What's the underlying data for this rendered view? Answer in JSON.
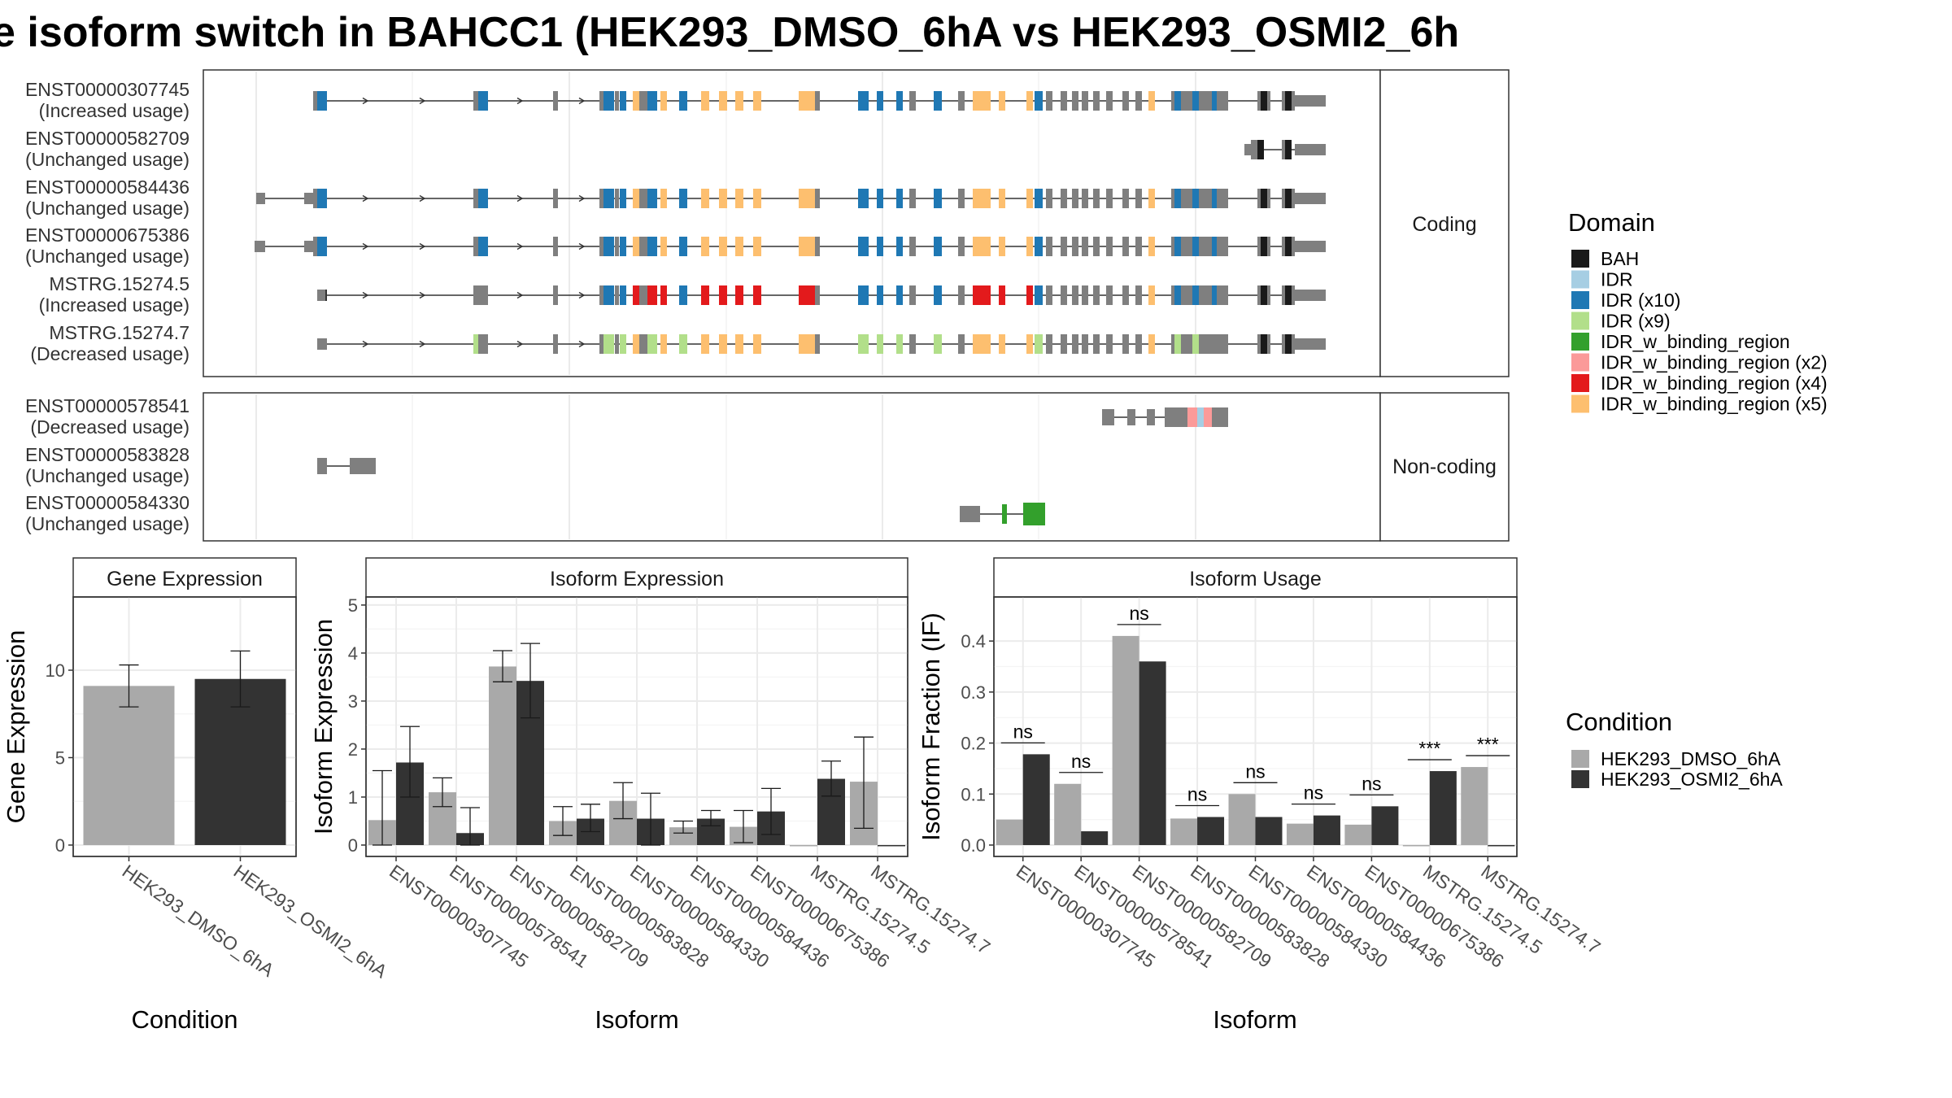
{
  "title": "e isoform switch in BAHCC1 (HEK293_DMSO_6hA vs HEK293_OSMI2_6h",
  "colors": {
    "BAH": "#1a1a1a",
    "IDR": "#a6cee3",
    "IDR (x10)": "#1f78b4",
    "IDR (x9)": "#b2df8a",
    "IDR_w_binding_region": "#33a02c",
    "IDR_w_binding_region (x2)": "#fb9a99",
    "IDR_w_binding_region (x4)": "#e31a1c",
    "IDR_w_binding_region (x5)": "#fdbf6f",
    "exon": "#7f7f7f",
    "dmso": "#a9a9a9",
    "osmi": "#333333"
  },
  "structure": {
    "coding_strip": "Coding",
    "noncoding_strip": "Non-coding",
    "coding": [
      {
        "id": "ENST00000307745",
        "usage": "(Increased usage)"
      },
      {
        "id": "ENST00000582709",
        "usage": "(Unchanged usage)"
      },
      {
        "id": "ENST00000584436",
        "usage": "(Unchanged usage)"
      },
      {
        "id": "ENST00000675386",
        "usage": "(Unchanged usage)"
      },
      {
        "id": "MSTRG.15274.5",
        "usage": "(Increased usage)"
      },
      {
        "id": "MSTRG.15274.7",
        "usage": "(Decreased usage)"
      }
    ],
    "noncoding": [
      {
        "id": "ENST00000578541",
        "usage": "(Decreased usage)"
      },
      {
        "id": "ENST00000583828",
        "usage": "(Unchanged usage)"
      },
      {
        "id": "ENST00000584330",
        "usage": "(Unchanged usage)"
      }
    ]
  },
  "legend_domain": {
    "title": "Domain",
    "items": [
      "BAH",
      "IDR",
      "IDR (x10)",
      "IDR (x9)",
      "IDR_w_binding_region",
      "IDR_w_binding_region (x2)",
      "IDR_w_binding_region (x4)",
      "IDR_w_binding_region (x5)"
    ]
  },
  "legend_condition": {
    "title": "Condition",
    "items": [
      "HEK293_DMSO_6hA",
      "HEK293_OSMI2_6hA"
    ]
  },
  "chart_data": [
    {
      "type": "bar",
      "title": "Gene Expression",
      "xlabel": "Condition",
      "ylabel": "Gene Expression",
      "ylim": [
        0,
        14
      ],
      "yticks": [
        0,
        5,
        10
      ],
      "categories": [
        "HEK293_DMSO_6hA",
        "HEK293_OSMI2_6hA"
      ],
      "values": [
        9.1,
        9.5
      ],
      "err_low": [
        7.9,
        7.9
      ],
      "err_high": [
        10.3,
        11.1
      ]
    },
    {
      "type": "bar",
      "title": "Isoform Expression",
      "xlabel": "Isoform",
      "ylabel": "Isoform Expression",
      "ylim": [
        0,
        5.1
      ],
      "yticks": [
        0,
        1,
        2,
        3,
        4,
        5
      ],
      "categories": [
        "ENST00000307745",
        "ENST00000578541",
        "ENST00000582709",
        "ENST00000583828",
        "ENST00000584330",
        "ENST00000584436",
        "ENST00000675386",
        "MSTRG.15274.5",
        "MSTRG.15274.7"
      ],
      "series": [
        {
          "name": "HEK293_DMSO_6hA",
          "values": [
            0.52,
            1.1,
            3.72,
            0.5,
            0.92,
            0.37,
            0.38,
            0,
            1.32
          ],
          "err_low": [
            0,
            0.8,
            3.4,
            0.2,
            0.55,
            0.25,
            0.05,
            0,
            0.35
          ],
          "err_high": [
            1.55,
            1.4,
            4.05,
            0.8,
            1.3,
            0.5,
            0.72,
            0,
            2.25
          ]
        },
        {
          "name": "HEK293_OSMI2_6hA",
          "values": [
            1.72,
            0.25,
            3.42,
            0.55,
            0.55,
            0.55,
            0.7,
            1.38,
            0
          ],
          "err_low": [
            1.0,
            0,
            2.65,
            0.28,
            0,
            0.4,
            0.22,
            1.02,
            0
          ],
          "err_high": [
            2.47,
            0.78,
            4.2,
            0.85,
            1.08,
            0.72,
            1.18,
            1.75,
            0
          ]
        }
      ]
    },
    {
      "type": "bar",
      "title": "Isoform Usage",
      "xlabel": "Isoform",
      "ylabel": "Isoform Fraction (IF)",
      "ylim": [
        0,
        0.48
      ],
      "yticks": [
        0.0,
        0.1,
        0.2,
        0.3,
        0.4
      ],
      "categories": [
        "ENST00000307745",
        "ENST00000578541",
        "ENST00000582709",
        "ENST00000583828",
        "ENST00000584330",
        "ENST00000584436",
        "ENST00000675386",
        "MSTRG.15274.5",
        "MSTRG.15274.7"
      ],
      "series": [
        {
          "name": "HEK293_DMSO_6hA",
          "values": [
            0.05,
            0.12,
            0.41,
            0.052,
            0.1,
            0.042,
            0.04,
            0,
            0.153
          ]
        },
        {
          "name": "HEK293_OSMI2_6hA",
          "values": [
            0.178,
            0.027,
            0.36,
            0.055,
            0.055,
            0.058,
            0.076,
            0.145,
            0
          ]
        }
      ],
      "significance": [
        "ns",
        "ns",
        "ns",
        "ns",
        "ns",
        "ns",
        "ns",
        "***",
        "***"
      ]
    }
  ]
}
